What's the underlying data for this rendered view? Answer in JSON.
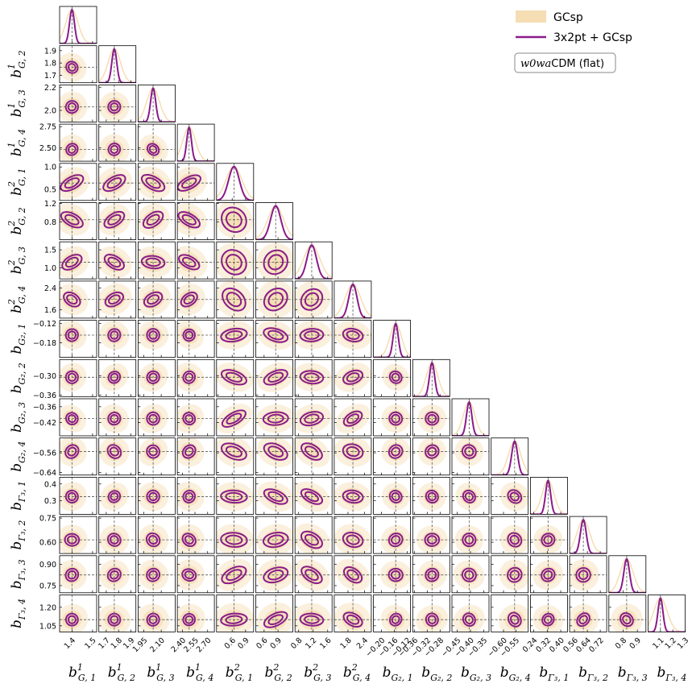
{
  "chart_data": {
    "type": "corner",
    "legend": {
      "placement": "top-right",
      "entries": [
        {
          "label": "GCsp",
          "style": "fill",
          "color": "#f5deb3"
        },
        {
          "label": "3x2pt + GCsp",
          "style": "line",
          "color": "#8b1a89"
        }
      ]
    },
    "model_box": {
      "math": "w0wa",
      "text": "CDM (flat)"
    },
    "colors": {
      "gcsp": "#f5deb3",
      "combined": "#8b1a89",
      "fiducial_line": "#555555"
    },
    "parameters": [
      {
        "base": "b",
        "sub": "G, 1",
        "sup": "1",
        "fiducial": 1.4,
        "range": [
          1.34,
          1.52
        ],
        "ticks": [
          1.4,
          1.5
        ],
        "tick_labels": [
          "1.4",
          "1.5"
        ],
        "w_gc": 0.03,
        "w_3x2": 0.012
      },
      {
        "base": "b",
        "sub": "G, 2",
        "sup": "1",
        "fiducial": 1.765,
        "range": [
          1.64,
          1.94
        ],
        "ticks": [
          1.7,
          1.8,
          1.9
        ],
        "tick_labels": [
          "1.7",
          "1.8",
          "1.9"
        ],
        "w_gc": 0.05,
        "w_3x2": 0.02
      },
      {
        "base": "b",
        "sub": "G, 3",
        "sup": "1",
        "fiducial": 2.03,
        "range": [
          1.9,
          2.22
        ],
        "ticks": [
          1.95,
          2.1
        ],
        "tick_labels": [
          "1.95",
          "2.10"
        ],
        "w_gc": 0.055,
        "w_3x2": 0.022
      },
      {
        "base": "b",
        "sub": "G, 4",
        "sup": "1",
        "fiducial": 2.48,
        "range": [
          2.34,
          2.78
        ],
        "ticks": [
          2.4,
          2.55,
          2.7
        ],
        "tick_labels": [
          "2.40",
          "2.55",
          "2.70"
        ],
        "w_gc": 0.075,
        "w_3x2": 0.028
      },
      {
        "base": "b",
        "sub": "G, 1",
        "sup": "2",
        "fiducial": 0.64,
        "range": [
          0.25,
          1.08
        ],
        "ticks": [
          0.6,
          0.9
        ],
        "tick_labels": [
          "0.6",
          "0.9"
        ],
        "w_gc": 0.18,
        "w_3x2": 0.12
      },
      {
        "base": "b",
        "sub": "G, 2",
        "sup": "2",
        "fiducial": 0.85,
        "range": [
          0.42,
          1.22
        ],
        "ticks": [
          0.6,
          0.9
        ],
        "tick_labels": [
          "0.6",
          "0.9"
        ],
        "w_gc": 0.17,
        "w_3x2": 0.11
      },
      {
        "base": "b",
        "sub": "G, 3",
        "sup": "2",
        "fiducial": 1.16,
        "range": [
          0.7,
          1.72
        ],
        "ticks": [
          0.8,
          1.2,
          1.6
        ],
        "tick_labels": [
          "0.8",
          "1.2",
          "1.6"
        ],
        "w_gc": 0.22,
        "w_3x2": 0.13
      },
      {
        "base": "b",
        "sub": "G, 4",
        "sup": "2",
        "fiducial": 1.98,
        "range": [
          1.3,
          2.65
        ],
        "ticks": [
          1.8,
          2.4
        ],
        "tick_labels": [
          "1.8",
          "2.4"
        ],
        "w_gc": 0.28,
        "w_3x2": 0.15
      },
      {
        "base": "b",
        "sub": "G₂, 1",
        "sup": "",
        "fiducial": -0.156,
        "range": [
          -0.225,
          -0.11
        ],
        "ticks": [
          -0.2,
          -0.16,
          -0.12
        ],
        "tick_labels": [
          "−0.20",
          "−0.16",
          "−0.12"
        ],
        "w_gc": 0.018,
        "w_3x2": 0.008
      },
      {
        "base": "b",
        "sub": "G₂, 2",
        "sup": "",
        "fiducial": -0.305,
        "range": [
          -0.365,
          -0.25
        ],
        "ticks": [
          -0.36,
          -0.32,
          -0.28
        ],
        "tick_labels": [
          "−0.36",
          "−0.32",
          "−0.28"
        ],
        "w_gc": 0.018,
        "w_3x2": 0.008
      },
      {
        "base": "b",
        "sub": "G₂, 3",
        "sup": "",
        "fiducial": -0.405,
        "range": [
          -0.47,
          -0.33
        ],
        "ticks": [
          -0.45,
          -0.4,
          -0.35
        ],
        "tick_labels": [
          "−0.45",
          "−0.40",
          "−0.35"
        ],
        "w_gc": 0.022,
        "w_3x2": 0.01
      },
      {
        "base": "b",
        "sub": "G₂, 4",
        "sup": "",
        "fiducial": -0.555,
        "range": [
          -0.65,
          -0.5
        ],
        "ticks": [
          -0.6,
          -0.55
        ],
        "tick_labels": [
          "−0.60",
          "−0.55"
        ],
        "w_gc": 0.025,
        "w_3x2": 0.012
      },
      {
        "base": "b",
        "sub": "Γ₃, 1",
        "sup": "",
        "fiducial": 0.325,
        "range": [
          0.22,
          0.44
        ],
        "ticks": [
          0.24,
          0.32,
          0.4
        ],
        "tick_labels": [
          "0.24",
          "0.32",
          "0.40"
        ],
        "w_gc": 0.035,
        "w_3x2": 0.015
      },
      {
        "base": "b",
        "sub": "Γ₃, 2",
        "sup": "",
        "fiducial": 0.615,
        "range": [
          0.53,
          0.76
        ],
        "ticks": [
          0.56,
          0.64,
          0.72
        ],
        "tick_labels": [
          "0.56",
          "0.64",
          "0.72"
        ],
        "w_gc": 0.04,
        "w_3x2": 0.018
      },
      {
        "base": "b",
        "sub": "Γ₃, 3",
        "sup": "",
        "fiducial": 0.825,
        "range": [
          0.7,
          0.96
        ],
        "ticks": [
          0.8,
          0.9
        ],
        "tick_labels": [
          "0.8",
          "0.9"
        ],
        "w_gc": 0.045,
        "w_3x2": 0.02
      },
      {
        "base": "b",
        "sub": "Γ₃, 4",
        "sup": "",
        "fiducial": 1.1,
        "range": [
          1.0,
          1.3
        ],
        "ticks": [
          1.1,
          1.2,
          1.3
        ],
        "tick_labels": [
          "1.1",
          "1.2",
          "1.3"
        ],
        "w_gc": 0.055,
        "w_3x2": 0.02
      }
    ],
    "row_tick_labels": [
      [],
      [
        "1.9",
        "1.8",
        "1.7"
      ],
      [
        "2.2",
        "2.0"
      ],
      [
        "2.75",
        "2.50"
      ],
      [
        "1.0",
        "0.5"
      ],
      [
        "1.2",
        "0.8"
      ],
      [
        "1.5",
        "1.0"
      ],
      [
        "2.4",
        "1.6"
      ],
      [
        "−0.12",
        "−0.18"
      ],
      [
        "−0.30",
        "−0.36"
      ],
      [
        "−0.36",
        "−0.42"
      ],
      [
        "−0.56",
        "−0.64"
      ],
      [
        "0.4",
        "0.3"
      ],
      [
        "0.75",
        "0.60"
      ],
      [
        "0.90",
        "0.75"
      ],
      [
        "1.20",
        "1.05"
      ]
    ],
    "row_tick_values": [
      [],
      [
        1.9,
        1.8,
        1.7
      ],
      [
        2.2,
        2.0
      ],
      [
        2.75,
        2.5
      ],
      [
        1.0,
        0.5
      ],
      [
        1.2,
        0.8
      ],
      [
        1.5,
        1.0
      ],
      [
        2.4,
        1.6
      ],
      [
        -0.12,
        -0.18
      ],
      [
        -0.3,
        -0.36
      ],
      [
        -0.36,
        -0.42
      ],
      [
        -0.56,
        -0.64
      ],
      [
        0.4,
        0.3
      ],
      [
        0.75,
        0.6
      ],
      [
        0.9,
        0.75
      ],
      [
        1.2,
        1.05
      ]
    ]
  }
}
